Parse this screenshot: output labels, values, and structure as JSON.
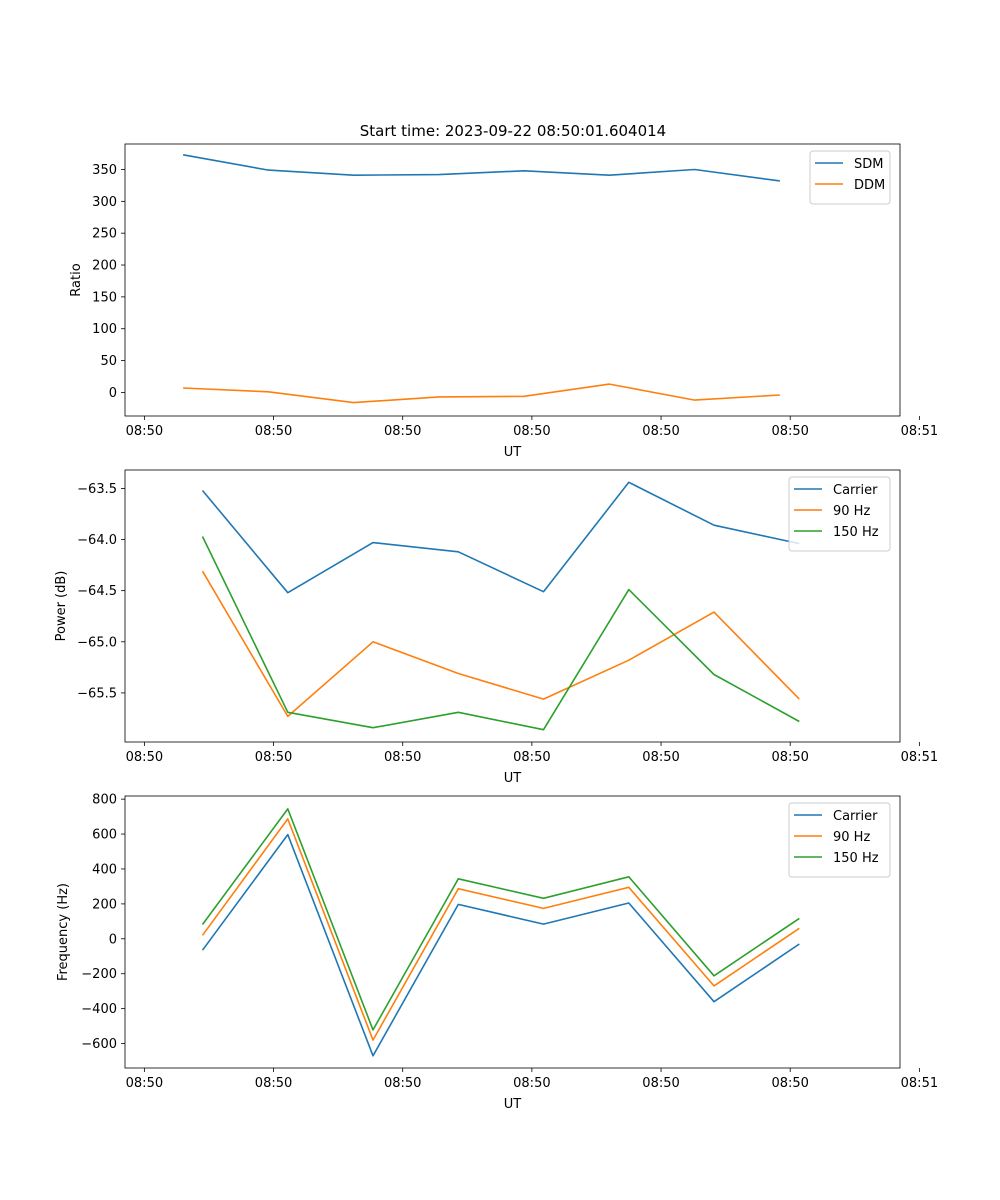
{
  "figure": {
    "title": "Start time: 2023-09-22 08:50:01.604014"
  },
  "chart_data": [
    {
      "type": "line",
      "title": "Start time: 2023-09-22 08:50:01.604014",
      "xlabel": "UT",
      "ylabel": "Ratio",
      "xlim": [
        -0.45,
        5.55
      ],
      "ylim": [
        -37,
        390
      ],
      "xticks": [
        {
          "v": -0.3,
          "label": "08:50"
        },
        {
          "v": 0.7,
          "label": "08:50"
        },
        {
          "v": 1.7,
          "label": "08:50"
        },
        {
          "v": 2.7,
          "label": "08:50"
        },
        {
          "v": 3.7,
          "label": "08:50"
        },
        {
          "v": 4.7,
          "label": "08:50"
        },
        {
          "v": 5.7,
          "label": "08:51"
        }
      ],
      "yticks": [
        0,
        50,
        100,
        150,
        200,
        250,
        300,
        350
      ],
      "legend_position": "top-right",
      "x": [
        0,
        0.66,
        1.32,
        1.98,
        2.64,
        3.3,
        3.96,
        4.62
      ],
      "series": [
        {
          "name": "SDM",
          "color": "#1f77b4",
          "values": [
            373,
            349,
            341,
            342,
            348,
            341,
            350,
            332
          ]
        },
        {
          "name": "DDM",
          "color": "#ff7f0e",
          "values": [
            7,
            1,
            -16,
            -7,
            -6,
            13,
            -12,
            -4
          ]
        }
      ]
    },
    {
      "type": "line",
      "title": "",
      "xlabel": "UT",
      "ylabel": "Power (dB)",
      "xlim": [
        -0.6,
        5.4
      ],
      "ylim": [
        -65.98,
        -63.32
      ],
      "xticks": [
        {
          "v": -0.45,
          "label": "08:50"
        },
        {
          "v": 0.55,
          "label": "08:50"
        },
        {
          "v": 1.55,
          "label": "08:50"
        },
        {
          "v": 2.55,
          "label": "08:50"
        },
        {
          "v": 3.55,
          "label": "08:50"
        },
        {
          "v": 4.55,
          "label": "08:50"
        },
        {
          "v": 5.55,
          "label": "08:51"
        }
      ],
      "yticks": [
        -65.5,
        -65.0,
        -64.5,
        -64.0,
        -63.5
      ],
      "yticklabels": [
        "−65.5",
        "−65.0",
        "−64.5",
        "−64.0",
        "−63.5"
      ],
      "legend_position": "top-right",
      "x": [
        0,
        0.66,
        1.32,
        1.98,
        2.64,
        3.3,
        3.96,
        4.62
      ],
      "series": [
        {
          "name": "Carrier",
          "color": "#1f77b4",
          "values": [
            -63.52,
            -64.52,
            -64.03,
            -64.12,
            -64.51,
            -63.44,
            -63.86,
            -64.04
          ]
        },
        {
          "name": "90 Hz",
          "color": "#ff7f0e",
          "values": [
            -64.31,
            -65.73,
            -65.0,
            -65.31,
            -65.56,
            -65.18,
            -64.71,
            -65.56
          ]
        },
        {
          "name": "150 Hz",
          "color": "#2ca02c",
          "values": [
            -63.97,
            -65.69,
            -65.84,
            -65.69,
            -65.86,
            -64.49,
            -65.32,
            -65.78
          ]
        }
      ]
    },
    {
      "type": "line",
      "title": "",
      "xlabel": "UT",
      "ylabel": "Frequency (Hz)",
      "xlim": [
        -0.6,
        5.4
      ],
      "ylim": [
        -740,
        818
      ],
      "xticks": [
        {
          "v": -0.45,
          "label": "08:50"
        },
        {
          "v": 0.55,
          "label": "08:50"
        },
        {
          "v": 1.55,
          "label": "08:50"
        },
        {
          "v": 2.55,
          "label": "08:50"
        },
        {
          "v": 3.55,
          "label": "08:50"
        },
        {
          "v": 4.55,
          "label": "08:50"
        },
        {
          "v": 5.55,
          "label": "08:51"
        }
      ],
      "yticks": [
        -600,
        -400,
        -200,
        0,
        200,
        400,
        600,
        800
      ],
      "yticklabels": [
        "−600",
        "−400",
        "−200",
        "0",
        "200",
        "400",
        "600",
        "800"
      ],
      "legend_position": "top-right",
      "x": [
        0,
        0.66,
        1.32,
        1.98,
        2.64,
        3.3,
        3.96,
        4.62
      ],
      "series": [
        {
          "name": "Carrier",
          "color": "#1f77b4",
          "values": [
            -65,
            597,
            -670,
            197,
            84,
            205,
            -360,
            -30
          ]
        },
        {
          "name": "90 Hz",
          "color": "#ff7f0e",
          "values": [
            20,
            687,
            -580,
            287,
            174,
            295,
            -270,
            60
          ]
        },
        {
          "name": "150 Hz",
          "color": "#2ca02c",
          "values": [
            82,
            744,
            -522,
            344,
            232,
            355,
            -212,
            117
          ]
        }
      ]
    }
  ]
}
